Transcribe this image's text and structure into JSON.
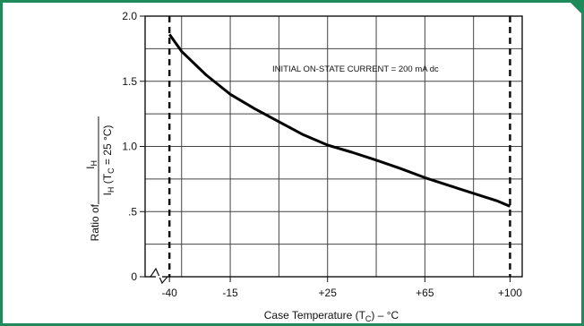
{
  "chart_data": {
    "type": "line",
    "annotation": "INITIAL ON-STATE CURRENT = 200 mA dc",
    "xlabel": "Case Temperature (T",
    "xlabel_sub": "C",
    "xlabel_suffix": ") – °C",
    "ylabel_prefix": "Ratio of",
    "ylabel_numerator": "I",
    "ylabel_numerator_sub": "H",
    "ylabel_denominator": "I",
    "ylabel_denominator_sub": "H",
    "ylabel_denominator_suffix1": " (T",
    "ylabel_denominator_sub2": "C",
    "ylabel_denominator_suffix2": " = 25 °C)",
    "xlim": [
      -50,
      105
    ],
    "ylim": [
      0,
      2.0
    ],
    "x_ticks": [
      {
        "value": -40,
        "label": "-40"
      },
      {
        "value": -15,
        "label": "-15"
      },
      {
        "value": 25,
        "label": "+25"
      },
      {
        "value": 65,
        "label": "+65"
      },
      {
        "value": 100,
        "label": "+100"
      }
    ],
    "y_ticks": [
      {
        "value": 0,
        "label": "0"
      },
      {
        "value": 0.5,
        "label": ".5"
      },
      {
        "value": 1.0,
        "label": "1.0"
      },
      {
        "value": 1.5,
        "label": "1.5"
      },
      {
        "value": 2.0,
        "label": "2.0"
      }
    ],
    "grid": true,
    "axis_break": true,
    "limit_lines_x": [
      -40,
      100
    ],
    "series": [
      {
        "x": [
          -40,
          -35,
          -25,
          -15,
          -5,
          5,
          15,
          25,
          35,
          45,
          55,
          65,
          75,
          85,
          95,
          100
        ],
        "values": [
          1.86,
          1.73,
          1.55,
          1.4,
          1.29,
          1.19,
          1.09,
          1.01,
          0.955,
          0.895,
          0.83,
          0.76,
          0.7,
          0.64,
          0.58,
          0.54
        ]
      }
    ]
  }
}
